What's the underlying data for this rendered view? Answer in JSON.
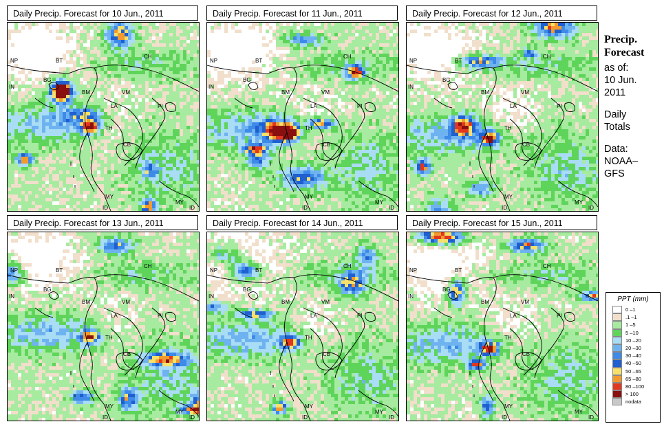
{
  "panels": [
    {
      "title": "Daily Precip. Forecast for  10 Jun., 2011",
      "seed": 11
    },
    {
      "title": "Daily Precip. Forecast for  11 Jun., 2011",
      "seed": 23
    },
    {
      "title": "Daily Precip. Forecast for  12 Jun., 2011",
      "seed": 37
    },
    {
      "title": "Daily Precip. Forecast for  13 Jun., 2011",
      "seed": 41
    },
    {
      "title": "Daily Precip. Forecast for  14 Jun., 2011",
      "seed": 53
    },
    {
      "title": "Daily Precip. Forecast for  15 Jun., 2011",
      "seed": 67
    }
  ],
  "country_labels": [
    "NP",
    "BT",
    "IN",
    "BG",
    "BM",
    "CH",
    "VM",
    "LA",
    "TH",
    "CB",
    "MY",
    "ID",
    "MY",
    "ID",
    "PI"
  ],
  "sidebar": {
    "heading1": "Precip.",
    "heading2": "Forecast",
    "line1": "as of:",
    "line2": "10 Jun.",
    "line3": "2011",
    "line4": "Daily",
    "line5": "Totals",
    "line6": "Data:",
    "line7": "NOAA–",
    "line8": "GFS"
  },
  "legend": {
    "title": "PPT (mm)",
    "items": [
      {
        "label": "0 –1",
        "color": "#ffffff"
      },
      {
        "label": ".1 –1",
        "color": "#f1dfcb"
      },
      {
        "label": "1 –5",
        "color": "#a6eb9f"
      },
      {
        "label": "5 –10",
        "color": "#5fd45a"
      },
      {
        "label": "10 –20",
        "color": "#a9dcf5"
      },
      {
        "label": "20 –30",
        "color": "#6eb3f0"
      },
      {
        "label": "30 –40",
        "color": "#3d8ae8"
      },
      {
        "label": "40 –50",
        "color": "#1f5fd0"
      },
      {
        "label": "50 –65",
        "color": "#f7e16b"
      },
      {
        "label": "65 –80",
        "color": "#f29a2e"
      },
      {
        "label": "80 –100",
        "color": "#e2371e"
      },
      {
        "label": "> 100",
        "color": "#8a1010"
      },
      {
        "label": "nodata",
        "color": "#c8c8c8"
      }
    ]
  }
}
